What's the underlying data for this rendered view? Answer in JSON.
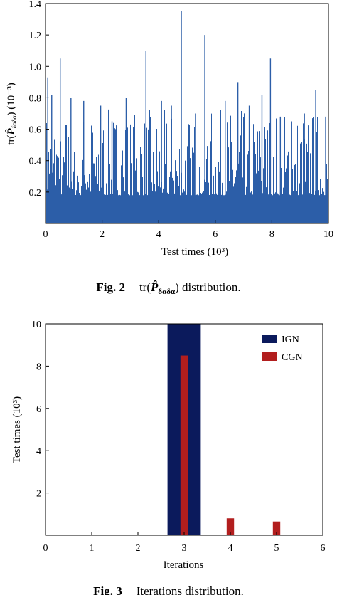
{
  "chart_data": [
    {
      "type": "bar",
      "xlabel": "Test times (10³)",
      "ylabel_prefix": "tr(",
      "ylabel_symbol": "P̂",
      "ylabel_subscript": "δαδα",
      "ylabel_suffix": ") (10⁻³)",
      "xlim": [
        0,
        10
      ],
      "ylim": [
        0,
        1.4
      ],
      "xticks": [
        "0",
        "2",
        "4",
        "6",
        "8",
        "10"
      ],
      "yticks": [
        "0.2",
        "0.4",
        "0.6",
        "0.8",
        "1.0",
        "1.2",
        "1.4"
      ],
      "color": "#2c5ea8",
      "caption_label": "Fig. 2",
      "caption_text_prefix": "tr(",
      "caption_symbol": "P̂",
      "caption_subscript": "δαδα",
      "caption_text_suffix": ") distribution.",
      "peaks": [
        {
          "x": 0.08,
          "y": 0.93
        },
        {
          "x": 0.22,
          "y": 0.82
        },
        {
          "x": 0.52,
          "y": 1.05
        },
        {
          "x": 0.9,
          "y": 0.8
        },
        {
          "x": 1.35,
          "y": 0.78
        },
        {
          "x": 1.95,
          "y": 0.75
        },
        {
          "x": 2.35,
          "y": 0.65
        },
        {
          "x": 2.85,
          "y": 0.8
        },
        {
          "x": 3.55,
          "y": 1.1
        },
        {
          "x": 4.1,
          "y": 0.78
        },
        {
          "x": 4.45,
          "y": 0.75
        },
        {
          "x": 4.8,
          "y": 1.35
        },
        {
          "x": 5.3,
          "y": 0.7
        },
        {
          "x": 5.63,
          "y": 1.2
        },
        {
          "x": 6.35,
          "y": 0.78
        },
        {
          "x": 6.8,
          "y": 0.9
        },
        {
          "x": 7.2,
          "y": 0.75
        },
        {
          "x": 7.65,
          "y": 0.82
        },
        {
          "x": 7.95,
          "y": 1.05
        },
        {
          "x": 8.3,
          "y": 0.68
        },
        {
          "x": 8.7,
          "y": 0.65
        },
        {
          "x": 9.15,
          "y": 0.7
        },
        {
          "x": 9.55,
          "y": 0.85
        },
        {
          "x": 9.9,
          "y": 0.68
        }
      ],
      "baseline": 0.15
    },
    {
      "type": "bar",
      "xlabel": "Iterations",
      "ylabel": "Test times (10³)",
      "xlim": [
        0,
        6
      ],
      "ylim": [
        0,
        10
      ],
      "xticks": [
        "0",
        "1",
        "2",
        "3",
        "4",
        "5",
        "6"
      ],
      "yticks": [
        "2",
        "4",
        "6",
        "8",
        "10"
      ],
      "legend_position": "top-right",
      "series": [
        {
          "name": "IGN",
          "color": "#0b1a5c",
          "x": [
            3
          ],
          "values": [
            10
          ]
        },
        {
          "name": "CGN",
          "color": "#b21e1e",
          "x": [
            3,
            4,
            5
          ],
          "values": [
            8.5,
            0.8,
            0.65
          ]
        }
      ],
      "caption_label": "Fig. 3",
      "caption_text": "Iterations distribution."
    }
  ]
}
